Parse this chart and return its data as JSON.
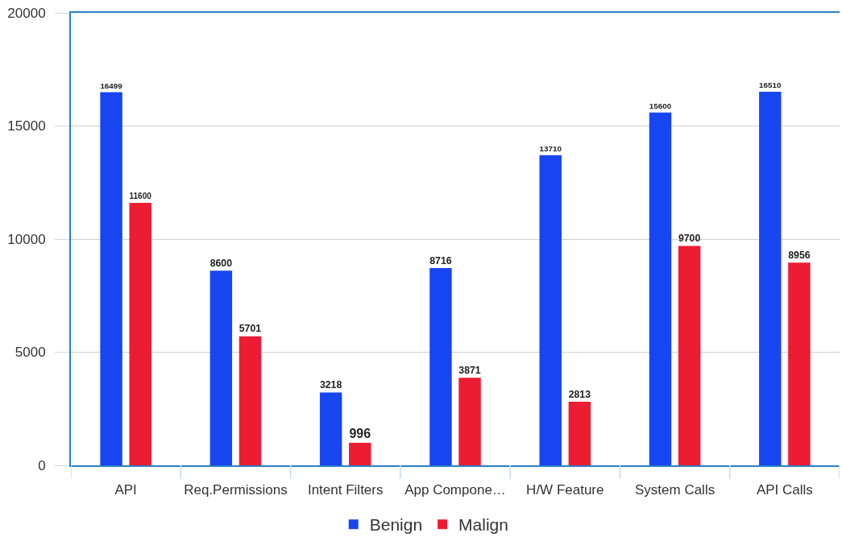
{
  "chart_data": {
    "type": "bar",
    "categories": [
      "API",
      "Req.Permissions",
      "Intent Filters",
      "App Compone…",
      "H/W Feature",
      "System Calls",
      "API Calls"
    ],
    "series": [
      {
        "name": "Benign",
        "color": "#1746f0",
        "values": [
          16499,
          8600,
          3218,
          8716,
          13710,
          15600,
          16510
        ]
      },
      {
        "name": "Malign",
        "color": "#ec1c32",
        "values": [
          11600,
          5701,
          996,
          3871,
          2813,
          9700,
          8956
        ]
      }
    ],
    "ylim": [
      0,
      20000
    ],
    "yticks": [
      0,
      5000,
      10000,
      15000,
      20000
    ],
    "grid": "y",
    "legend": "bottom",
    "data_labels": true
  }
}
